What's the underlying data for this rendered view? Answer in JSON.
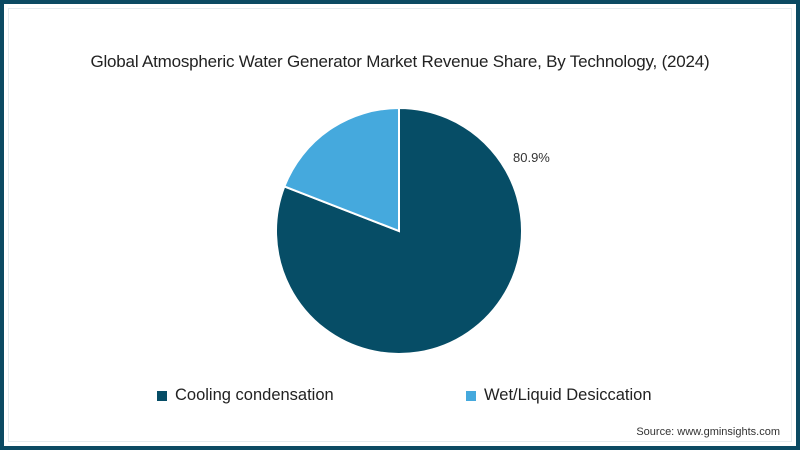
{
  "chart_data": {
    "type": "pie",
    "title": "Global Atmospheric Water Generator Market Revenue Share, By Technology, (2024)",
    "categories": [
      "Cooling condensation",
      "Wet/Liquid Desiccation"
    ],
    "values": [
      80.9,
      19.1
    ],
    "colors": [
      "#064d66",
      "#45a9dd"
    ],
    "data_labels": [
      "80.9%",
      ""
    ],
    "legend_position": "bottom",
    "start_angle_deg": 0,
    "direction": "clockwise"
  },
  "title": "Global Atmospheric Water Generator Market Revenue Share, By Technology, (2024)",
  "pie_label": "80.9%",
  "legend": {
    "items": [
      {
        "label": "Cooling condensation",
        "color": "#064d66"
      },
      {
        "label": "Wet/Liquid Desiccation",
        "color": "#45a9dd"
      }
    ]
  },
  "source": "Source: www.gminsights.com",
  "frame_color": "#0b4a63"
}
